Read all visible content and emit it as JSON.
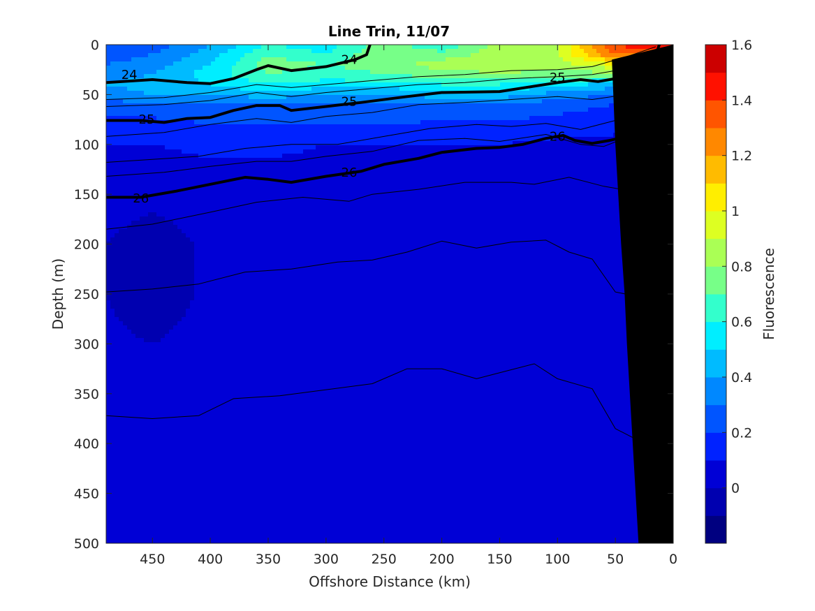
{
  "chart_data": {
    "type": "heatmap",
    "title": "Line Trin, 11/07",
    "xlabel": "Offshore Distance (km)",
    "ylabel": "Depth (m)",
    "colorbar_label": "Fluorescence",
    "xlim": [
      490,
      0
    ],
    "ylim": [
      0,
      500
    ],
    "x_reversed": true,
    "y_reversed": true,
    "xticks": [
      450,
      400,
      350,
      300,
      250,
      200,
      150,
      100,
      50,
      0
    ],
    "xtick_labels": [
      "450",
      "400",
      "350",
      "300",
      "250",
      "200",
      "150",
      "100",
      "50",
      "0"
    ],
    "yticks": [
      0,
      50,
      100,
      150,
      200,
      250,
      300,
      350,
      400,
      450,
      500
    ],
    "ytick_labels": [
      "0",
      "50",
      "100",
      "150",
      "200",
      "250",
      "300",
      "350",
      "400",
      "450",
      "500"
    ],
    "colorbar": {
      "range": [
        -0.2,
        1.6
      ],
      "ticks": [
        0,
        0.2,
        0.4,
        0.6,
        0.8,
        1.0,
        1.2,
        1.4,
        1.6
      ],
      "tick_labels": [
        "0",
        "0.2",
        "0.4",
        "0.6",
        "0.8",
        "1",
        "1.2",
        "1.4",
        "1.6"
      ],
      "levels": [
        -0.2,
        -0.1,
        0,
        0.1,
        0.2,
        0.3,
        0.4,
        0.5,
        0.6,
        0.7,
        0.8,
        0.9,
        1.0,
        1.1,
        1.2,
        1.3,
        1.4,
        1.5,
        1.6
      ],
      "colors": [
        "#000080",
        "#0000b0",
        "#0000d6",
        "#0022ff",
        "#0055ff",
        "#0088ff",
        "#00bbff",
        "#00eeff",
        "#33ffcc",
        "#77ff88",
        "#aaff55",
        "#ddff22",
        "#ffee00",
        "#ffbb00",
        "#ff8800",
        "#ff5500",
        "#ff1100",
        "#cc0000"
      ]
    },
    "fluorescence_field": {
      "x": [
        490,
        450,
        400,
        350,
        300,
        250,
        200,
        150,
        100,
        50,
        10
      ],
      "depth": [
        0,
        10,
        20,
        30,
        40,
        50,
        60,
        80,
        100,
        150,
        200,
        250,
        300,
        400,
        500
      ],
      "values": [
        [
          0.25,
          0.25,
          0.4,
          0.6,
          0.55,
          0.75,
          0.6,
          0.85,
          0.9,
          1.4,
          1.5
        ],
        [
          0.25,
          0.3,
          0.45,
          0.7,
          0.6,
          0.8,
          0.75,
          0.85,
          0.9,
          1.3,
          1.3
        ],
        [
          0.3,
          0.35,
          0.5,
          0.75,
          0.7,
          0.75,
          0.85,
          0.85,
          0.85,
          1.0,
          0.9
        ],
        [
          0.35,
          0.4,
          0.55,
          0.7,
          0.65,
          0.7,
          0.75,
          0.8,
          0.75,
          0.75,
          0.6
        ],
        [
          0.4,
          0.45,
          0.5,
          0.6,
          0.55,
          0.55,
          0.6,
          0.6,
          0.55,
          0.45,
          0.35
        ],
        [
          0.35,
          0.4,
          0.4,
          0.45,
          0.4,
          0.4,
          0.45,
          0.45,
          0.35,
          0.3,
          0.2
        ],
        [
          0.25,
          0.3,
          0.3,
          0.3,
          0.3,
          0.3,
          0.3,
          0.3,
          0.25,
          0.2,
          0.15
        ],
        [
          0.15,
          0.15,
          0.2,
          0.2,
          0.2,
          0.2,
          0.18,
          0.18,
          0.15,
          0.12,
          0.1
        ],
        [
          0.1,
          0.1,
          0.12,
          0.12,
          0.1,
          0.1,
          0.1,
          0.1,
          0.08,
          0.08,
          0.05
        ],
        [
          0.05,
          0.03,
          0.05,
          0.05,
          0.05,
          0.05,
          0.05,
          0.05,
          0.05,
          0.05,
          0.05
        ],
        [
          0.0,
          -0.05,
          0.02,
          0.03,
          0.03,
          0.03,
          0.03,
          0.03,
          0.03,
          0.03,
          0.03
        ],
        [
          0.0,
          -0.05,
          0.02,
          0.03,
          0.03,
          0.03,
          0.03,
          0.03,
          0.03,
          0.03,
          0.03
        ],
        [
          0.02,
          0.0,
          0.03,
          0.03,
          0.03,
          0.03,
          0.03,
          0.03,
          0.03,
          0.03,
          0.03
        ],
        [
          0.03,
          0.03,
          0.03,
          0.03,
          0.03,
          0.03,
          0.03,
          0.03,
          0.03,
          0.03,
          0.03
        ],
        [
          0.03,
          0.03,
          0.03,
          0.03,
          0.03,
          0.03,
          0.03,
          0.03,
          0.03,
          0.03,
          0.03
        ]
      ]
    },
    "contours": [
      {
        "level": "24",
        "style": "bold",
        "x": [
          490,
          450,
          420,
          400,
          380,
          360,
          350,
          330,
          300,
          275,
          265,
          262
        ],
        "y": [
          38,
          35,
          38,
          39,
          34,
          25,
          21,
          26,
          22,
          15,
          10,
          0
        ],
        "label_at": [
          470,
          30,
          280,
          15
        ]
      },
      {
        "level": "25",
        "style": "bold",
        "x": [
          490,
          460,
          440,
          420,
          400,
          380,
          360,
          340,
          330,
          300,
          270,
          230,
          200,
          150,
          100,
          80,
          65,
          50,
          30,
          15,
          12
        ],
        "y": [
          76,
          76,
          78,
          74,
          73,
          66,
          61,
          61,
          66,
          62,
          58,
          52,
          48,
          47,
          38,
          35,
          37,
          34,
          22,
          10,
          0
        ],
        "label_at": [
          455,
          75,
          280,
          57,
          100,
          33
        ]
      },
      {
        "level": "26",
        "style": "bold",
        "x": [
          490,
          460,
          430,
          400,
          370,
          350,
          330,
          300,
          270,
          250,
          220,
          200,
          170,
          150,
          130,
          110,
          95,
          85,
          70,
          55,
          40,
          20,
          10
        ],
        "y": [
          153,
          153,
          147,
          140,
          133,
          135,
          138,
          132,
          127,
          120,
          114,
          108,
          104,
          103,
          100,
          94,
          91,
          96,
          99,
          96,
          92,
          100,
          105
        ],
        "label_at": [
          460,
          154,
          280,
          128,
          100,
          92
        ]
      },
      {
        "level": "",
        "style": "thin",
        "x": [
          490,
          440,
          400,
          360,
          330,
          300,
          260,
          220,
          180,
          140,
          100,
          70,
          40,
          15
        ],
        "y": [
          55,
          53,
          48,
          40,
          43,
          40,
          36,
          32,
          30,
          26,
          25,
          22,
          12,
          2
        ]
      },
      {
        "level": "",
        "style": "thin",
        "x": [
          490,
          440,
          400,
          360,
          330,
          300,
          260,
          220,
          180,
          140,
          100,
          70,
          40,
          12
        ],
        "y": [
          62,
          60,
          56,
          48,
          52,
          48,
          44,
          40,
          38,
          34,
          32,
          30,
          24,
          8
        ]
      },
      {
        "level": "",
        "style": "thin",
        "x": [
          490,
          440,
          400,
          360,
          330,
          300,
          260,
          220,
          180,
          140,
          100,
          70,
          40,
          10
        ],
        "y": [
          92,
          88,
          80,
          74,
          78,
          72,
          68,
          60,
          58,
          55,
          52,
          55,
          50,
          48
        ]
      },
      {
        "level": "",
        "style": "thin",
        "x": [
          490,
          450,
          410,
          370,
          330,
          290,
          250,
          210,
          170,
          140,
          110,
          80,
          50,
          20,
          10
        ],
        "y": [
          118,
          115,
          112,
          104,
          100,
          100,
          92,
          84,
          80,
          82,
          79,
          85,
          76,
          70,
          66
        ]
      },
      {
        "level": "",
        "style": "thin",
        "x": [
          490,
          440,
          400,
          360,
          330,
          300,
          260,
          220,
          180,
          150,
          110,
          80,
          60,
          40,
          20
        ],
        "y": [
          132,
          128,
          122,
          117,
          117,
          112,
          107,
          96,
          94,
          97,
          90,
          100,
          102,
          93,
          102
        ]
      },
      {
        "level": "",
        "style": "thin",
        "x": [
          490,
          450,
          400,
          360,
          320,
          280,
          260,
          220,
          180,
          140,
          120,
          90,
          60,
          30,
          15
        ],
        "y": [
          185,
          180,
          168,
          158,
          153,
          157,
          150,
          145,
          138,
          138,
          140,
          133,
          142,
          148,
          165
        ]
      },
      {
        "level": "",
        "style": "thin",
        "x": [
          490,
          450,
          410,
          370,
          330,
          290,
          260,
          230,
          200,
          170,
          140,
          110,
          90,
          70,
          50,
          20
        ],
        "y": [
          248,
          245,
          240,
          228,
          225,
          218,
          216,
          208,
          197,
          204,
          198,
          196,
          208,
          215,
          248,
          255
        ]
      },
      {
        "level": "",
        "style": "thin",
        "x": [
          490,
          450,
          410,
          380,
          340,
          300,
          260,
          230,
          200,
          170,
          140,
          120,
          100,
          70,
          50,
          25
        ],
        "y": [
          372,
          375,
          372,
          355,
          352,
          346,
          340,
          325,
          325,
          335,
          326,
          320,
          335,
          345,
          385,
          400
        ]
      }
    ],
    "shelf_polygon_x": [
      30,
      35,
      40,
      42,
      45,
      50,
      53,
      0,
      0
    ],
    "shelf_polygon_depth": [
      500,
      400,
      300,
      250,
      200,
      100,
      15,
      0,
      500
    ]
  }
}
